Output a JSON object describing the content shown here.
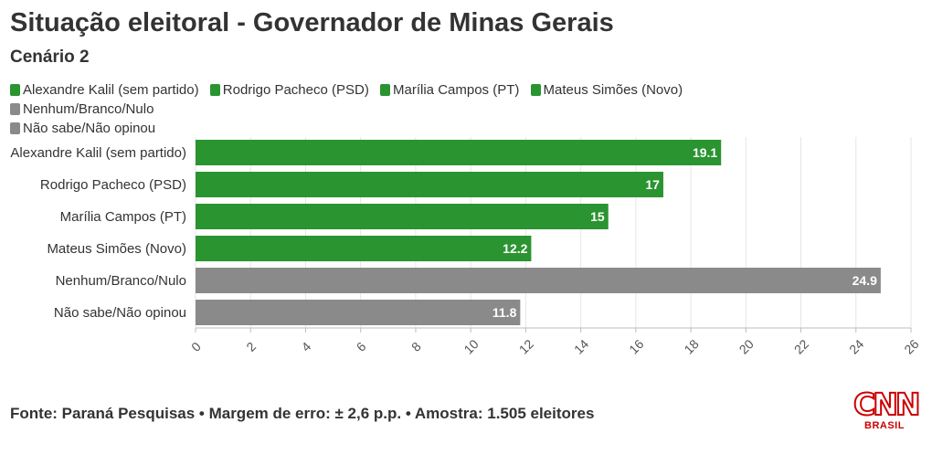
{
  "title": "Situação eleitoral - Governador de Minas Gerais",
  "subtitle": "Cenário 2",
  "legend": [
    {
      "label": "Alexandre Kalil (sem partido)",
      "color": "#2a9430"
    },
    {
      "label": "Rodrigo Pacheco (PSD)",
      "color": "#2a9430"
    },
    {
      "label": "Marília Campos (PT)",
      "color": "#2a9430"
    },
    {
      "label": "Mateus Simões (Novo)",
      "color": "#2a9430"
    },
    {
      "label": "Nenhum/Branco/Nulo",
      "color": "#8a8a8a"
    },
    {
      "label": "Não sabe/Não opinou",
      "color": "#8a8a8a"
    }
  ],
  "chart_data": {
    "type": "bar",
    "orientation": "horizontal",
    "title": "Situação eleitoral - Governador de Minas Gerais",
    "subtitle": "Cenário 2",
    "categories": [
      "Alexandre Kalil (sem partido)",
      "Rodrigo Pacheco (PSD)",
      "Marília Campos (PT)",
      "Mateus Simões (Novo)",
      "Nenhum/Branco/Nulo",
      "Não sabe/Não opinou"
    ],
    "values": [
      19.1,
      17,
      15,
      12.2,
      24.9,
      11.8
    ],
    "value_labels": [
      "19.1",
      "17",
      "15",
      "12.2",
      "24.9",
      "11.8"
    ],
    "colors": [
      "#2a9430",
      "#2a9430",
      "#2a9430",
      "#2a9430",
      "#8a8a8a",
      "#8a8a8a"
    ],
    "xlim": [
      0,
      26
    ],
    "xticks": [
      "0",
      "2",
      "4",
      "6",
      "8",
      "10",
      "12",
      "14",
      "16",
      "18",
      "20",
      "22",
      "24",
      "26"
    ],
    "xlabel": "",
    "ylabel": "",
    "grid": true,
    "legend_position": "top"
  },
  "source": "Fonte: Paraná Pesquisas • Margem de erro: ± 2,6 p.p. • Amostra: 1.505 eleitores",
  "logo": {
    "main": "CNN",
    "sub": "BRASIL",
    "color": "#cc0000"
  }
}
